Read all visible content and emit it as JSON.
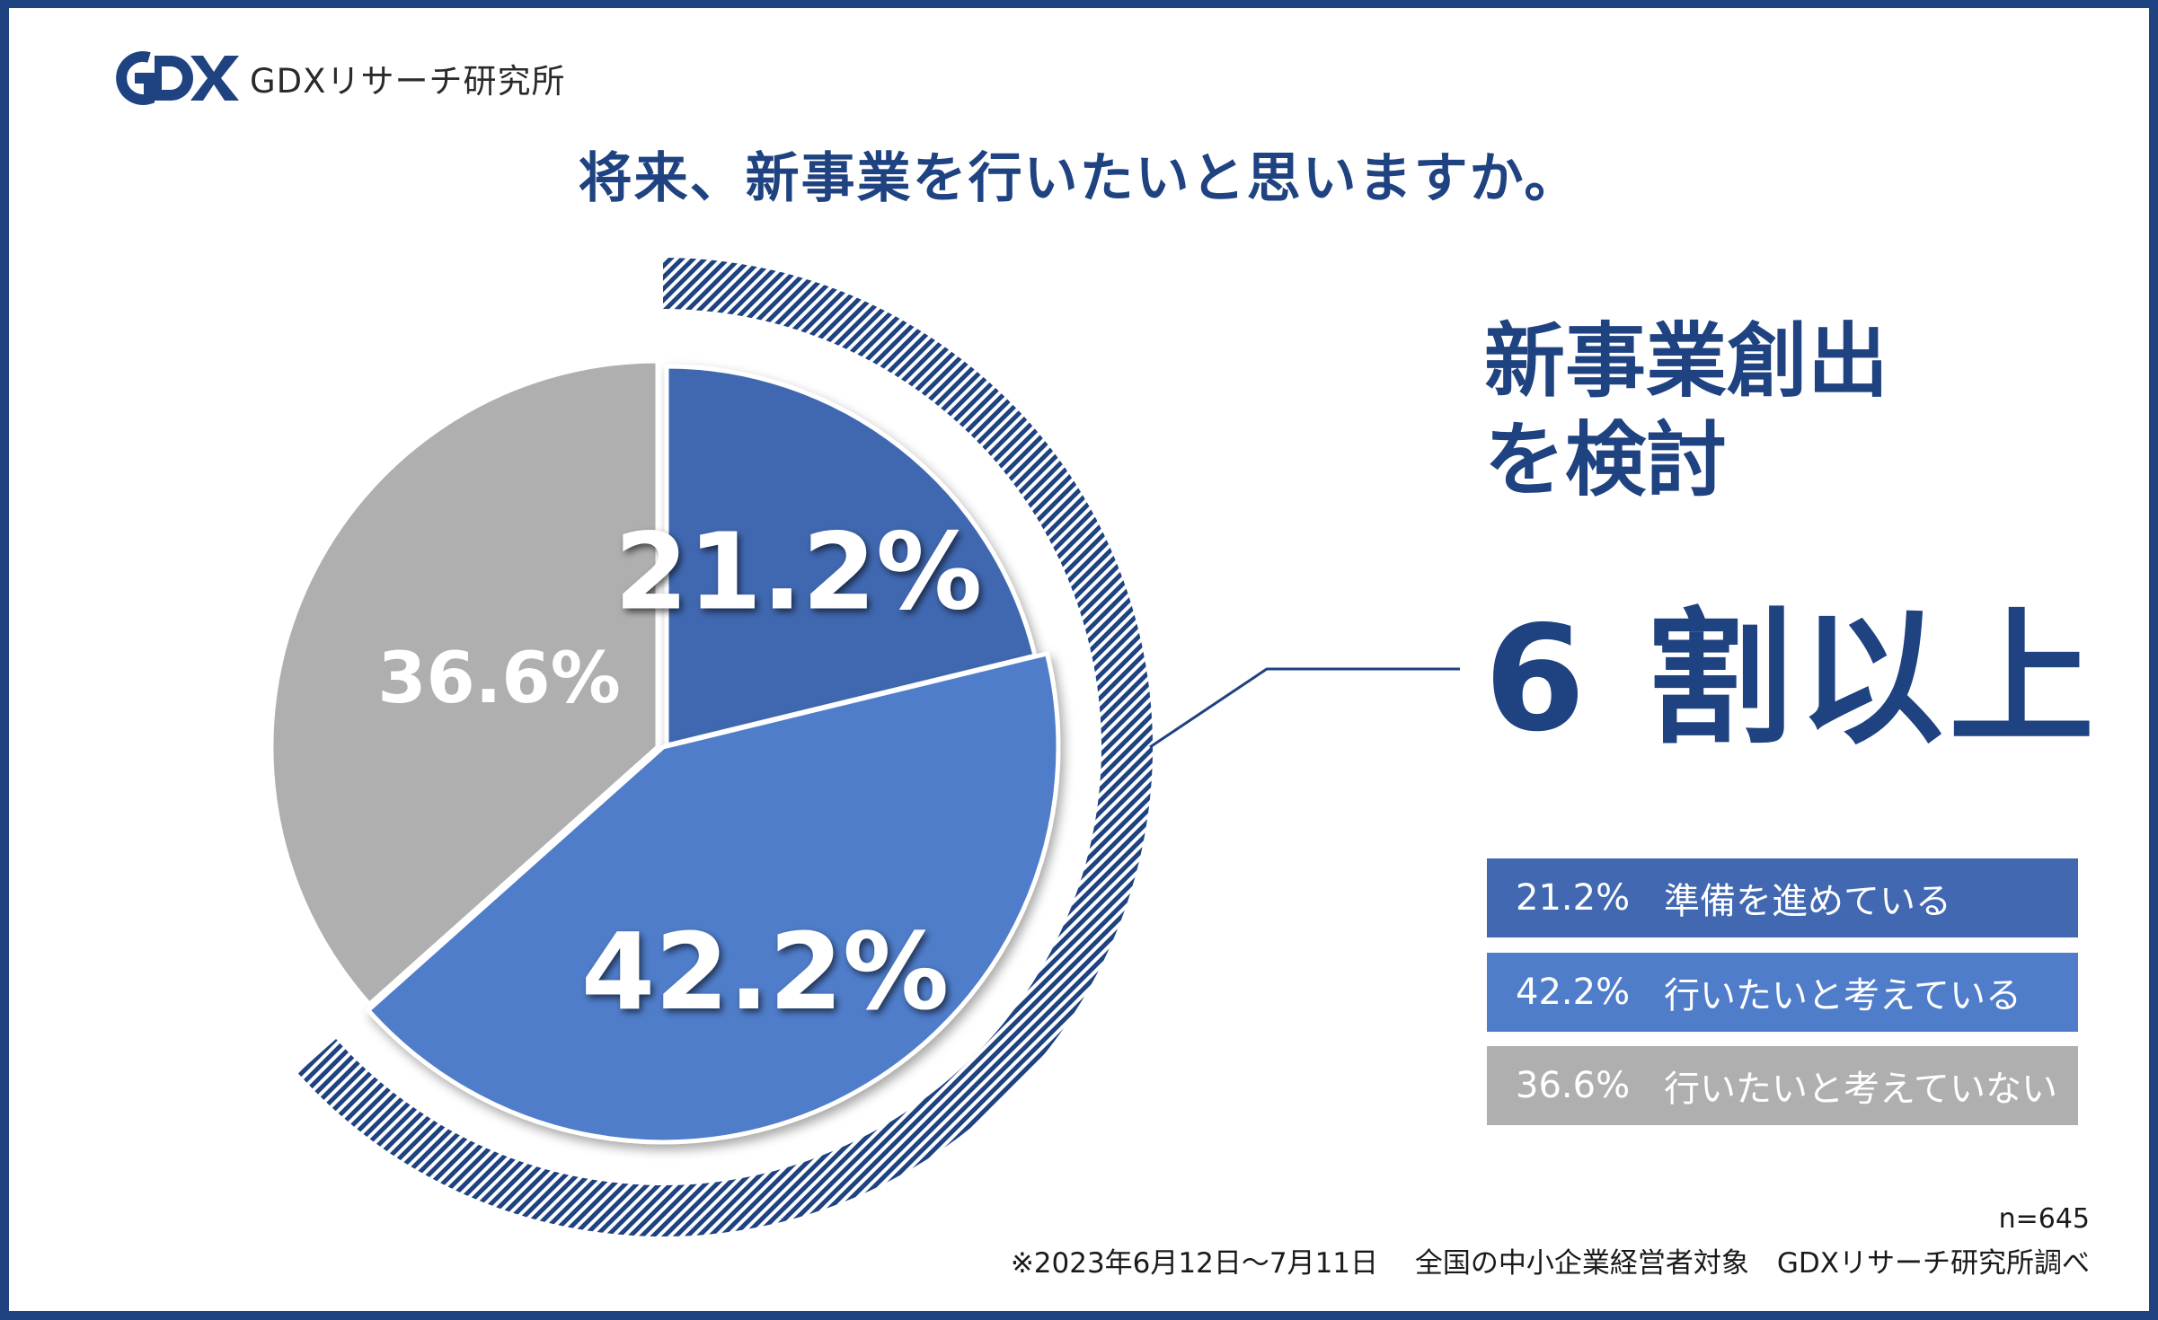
{
  "brand": {
    "name": "GDXリサーチ研究所"
  },
  "title": "将来、新事業を行いたいと思いますか。",
  "headline": {
    "line1": "新事業創出",
    "line2": "を検討",
    "big": "6 割以上"
  },
  "colors": {
    "frame": "#1f4281",
    "dark_blue": "#4168b1",
    "mid_blue": "#4f7dca",
    "gray": "#afafaf",
    "text": "#1f4281"
  },
  "chart_data": {
    "type": "pie",
    "categories": [
      "準備を進めている",
      "行いたいと考えている",
      "行いたいと考えていない"
    ],
    "values": [
      21.2,
      42.2,
      36.6
    ],
    "labels": [
      "21.2%",
      "42.2%",
      "36.6%"
    ],
    "colors": [
      "#4168b1",
      "#4f7dca",
      "#afafaf"
    ],
    "highlight": "準備を進めている + 行いたいと考えている (6 割以上)"
  },
  "legend": [
    {
      "pct": "21.2%",
      "label": "準備を進めている",
      "color": "#4168b1"
    },
    {
      "pct": "42.2%",
      "label": "行いたいと考えている",
      "color": "#4f7dca"
    },
    {
      "pct": "36.6%",
      "label": "行いたいと考えていない",
      "color": "#afafaf"
    }
  ],
  "notes": {
    "sample": "n=645",
    "source": "※2023年6月12日～7月11日　 全国の中小企業経営者対象　GDXリサーチ研究所調べ"
  }
}
